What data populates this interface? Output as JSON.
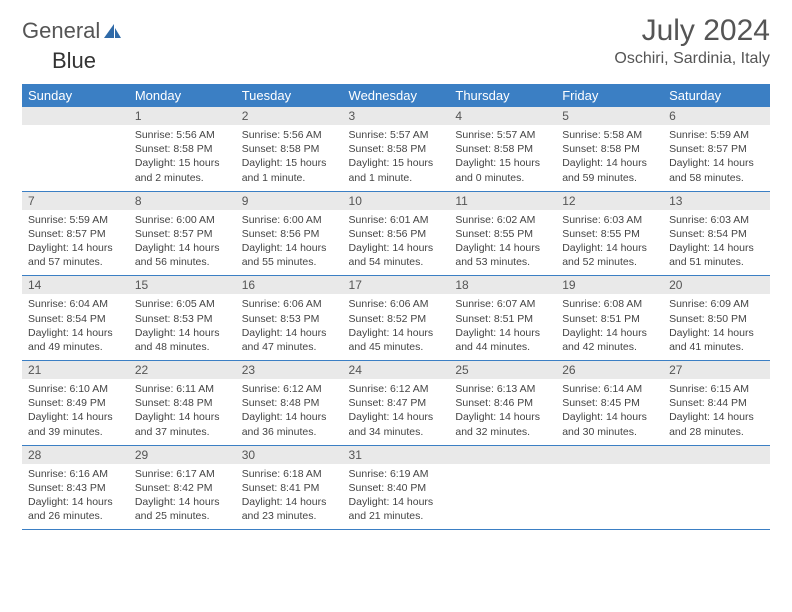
{
  "brand": {
    "general": "General",
    "blue": "Blue"
  },
  "title": "July 2024",
  "location": "Oschiri, Sardinia, Italy",
  "colors": {
    "accent": "#3b7fc4",
    "dayHeaderBg": "#e9e9e9",
    "text": "#444444",
    "titleText": "#555555",
    "background": "#ffffff"
  },
  "dow": [
    "Sunday",
    "Monday",
    "Tuesday",
    "Wednesday",
    "Thursday",
    "Friday",
    "Saturday"
  ],
  "weeks": [
    [
      {
        "empty": true
      },
      {
        "day": "1",
        "sunrise": "5:56 AM",
        "sunset": "8:58 PM",
        "daylight": "15 hours and 2 minutes."
      },
      {
        "day": "2",
        "sunrise": "5:56 AM",
        "sunset": "8:58 PM",
        "daylight": "15 hours and 1 minute."
      },
      {
        "day": "3",
        "sunrise": "5:57 AM",
        "sunset": "8:58 PM",
        "daylight": "15 hours and 1 minute."
      },
      {
        "day": "4",
        "sunrise": "5:57 AM",
        "sunset": "8:58 PM",
        "daylight": "15 hours and 0 minutes."
      },
      {
        "day": "5",
        "sunrise": "5:58 AM",
        "sunset": "8:58 PM",
        "daylight": "14 hours and 59 minutes."
      },
      {
        "day": "6",
        "sunrise": "5:59 AM",
        "sunset": "8:57 PM",
        "daylight": "14 hours and 58 minutes."
      }
    ],
    [
      {
        "day": "7",
        "sunrise": "5:59 AM",
        "sunset": "8:57 PM",
        "daylight": "14 hours and 57 minutes."
      },
      {
        "day": "8",
        "sunrise": "6:00 AM",
        "sunset": "8:57 PM",
        "daylight": "14 hours and 56 minutes."
      },
      {
        "day": "9",
        "sunrise": "6:00 AM",
        "sunset": "8:56 PM",
        "daylight": "14 hours and 55 minutes."
      },
      {
        "day": "10",
        "sunrise": "6:01 AM",
        "sunset": "8:56 PM",
        "daylight": "14 hours and 54 minutes."
      },
      {
        "day": "11",
        "sunrise": "6:02 AM",
        "sunset": "8:55 PM",
        "daylight": "14 hours and 53 minutes."
      },
      {
        "day": "12",
        "sunrise": "6:03 AM",
        "sunset": "8:55 PM",
        "daylight": "14 hours and 52 minutes."
      },
      {
        "day": "13",
        "sunrise": "6:03 AM",
        "sunset": "8:54 PM",
        "daylight": "14 hours and 51 minutes."
      }
    ],
    [
      {
        "day": "14",
        "sunrise": "6:04 AM",
        "sunset": "8:54 PM",
        "daylight": "14 hours and 49 minutes."
      },
      {
        "day": "15",
        "sunrise": "6:05 AM",
        "sunset": "8:53 PM",
        "daylight": "14 hours and 48 minutes."
      },
      {
        "day": "16",
        "sunrise": "6:06 AM",
        "sunset": "8:53 PM",
        "daylight": "14 hours and 47 minutes."
      },
      {
        "day": "17",
        "sunrise": "6:06 AM",
        "sunset": "8:52 PM",
        "daylight": "14 hours and 45 minutes."
      },
      {
        "day": "18",
        "sunrise": "6:07 AM",
        "sunset": "8:51 PM",
        "daylight": "14 hours and 44 minutes."
      },
      {
        "day": "19",
        "sunrise": "6:08 AM",
        "sunset": "8:51 PM",
        "daylight": "14 hours and 42 minutes."
      },
      {
        "day": "20",
        "sunrise": "6:09 AM",
        "sunset": "8:50 PM",
        "daylight": "14 hours and 41 minutes."
      }
    ],
    [
      {
        "day": "21",
        "sunrise": "6:10 AM",
        "sunset": "8:49 PM",
        "daylight": "14 hours and 39 minutes."
      },
      {
        "day": "22",
        "sunrise": "6:11 AM",
        "sunset": "8:48 PM",
        "daylight": "14 hours and 37 minutes."
      },
      {
        "day": "23",
        "sunrise": "6:12 AM",
        "sunset": "8:48 PM",
        "daylight": "14 hours and 36 minutes."
      },
      {
        "day": "24",
        "sunrise": "6:12 AM",
        "sunset": "8:47 PM",
        "daylight": "14 hours and 34 minutes."
      },
      {
        "day": "25",
        "sunrise": "6:13 AM",
        "sunset": "8:46 PM",
        "daylight": "14 hours and 32 minutes."
      },
      {
        "day": "26",
        "sunrise": "6:14 AM",
        "sunset": "8:45 PM",
        "daylight": "14 hours and 30 minutes."
      },
      {
        "day": "27",
        "sunrise": "6:15 AM",
        "sunset": "8:44 PM",
        "daylight": "14 hours and 28 minutes."
      }
    ],
    [
      {
        "day": "28",
        "sunrise": "6:16 AM",
        "sunset": "8:43 PM",
        "daylight": "14 hours and 26 minutes."
      },
      {
        "day": "29",
        "sunrise": "6:17 AM",
        "sunset": "8:42 PM",
        "daylight": "14 hours and 25 minutes."
      },
      {
        "day": "30",
        "sunrise": "6:18 AM",
        "sunset": "8:41 PM",
        "daylight": "14 hours and 23 minutes."
      },
      {
        "day": "31",
        "sunrise": "6:19 AM",
        "sunset": "8:40 PM",
        "daylight": "14 hours and 21 minutes."
      },
      {
        "empty": true
      },
      {
        "empty": true
      },
      {
        "empty": true
      }
    ]
  ],
  "labels": {
    "sunrise": "Sunrise: ",
    "sunset": "Sunset: ",
    "daylight": "Daylight: "
  }
}
